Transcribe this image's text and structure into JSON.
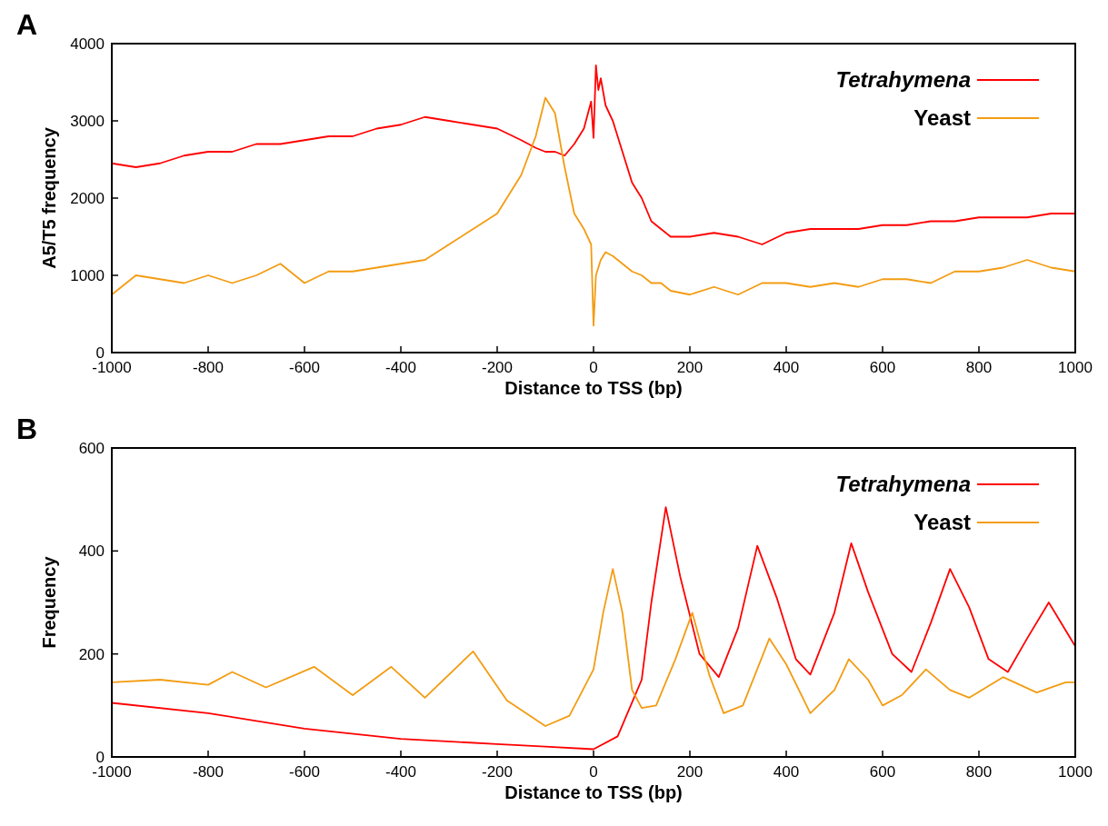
{
  "chart_data": [
    {
      "type": "line",
      "annotations": [
        "A"
      ],
      "xlabel": "Distance to TSS (bp)",
      "ylabel": "A5/T5  frequency",
      "xlim": [
        -1000,
        1000
      ],
      "xticks": [
        -1000,
        -800,
        -600,
        -400,
        -200,
        0,
        200,
        400,
        600,
        800,
        1000
      ],
      "ylim": [
        0,
        4000
      ],
      "yticks": [
        0,
        1000,
        2000,
        3000,
        4000
      ],
      "grid": false,
      "legend": "top right",
      "series": [
        {
          "name": "*Tetrahymena*",
          "color": "#ff0000",
          "x": [
            -1000,
            -950,
            -900,
            -850,
            -800,
            -750,
            -700,
            -650,
            -600,
            -550,
            -500,
            -450,
            -400,
            -350,
            -300,
            -250,
            -200,
            -150,
            -120,
            -100,
            -80,
            -60,
            -40,
            -20,
            -5,
            0,
            5,
            10,
            15,
            25,
            40,
            60,
            80,
            100,
            120,
            140,
            160,
            200,
            250,
            300,
            350,
            400,
            450,
            500,
            550,
            600,
            650,
            700,
            750,
            800,
            850,
            900,
            950,
            1000
          ],
          "values": [
            2450,
            2400,
            2450,
            2550,
            2600,
            2600,
            2700,
            2700,
            2750,
            2800,
            2800,
            2900,
            2950,
            3050,
            3000,
            2950,
            2900,
            2750,
            2650,
            2600,
            2600,
            2550,
            2700,
            2900,
            3250,
            2780,
            3720,
            3400,
            3550,
            3200,
            3000,
            2600,
            2200,
            2000,
            1700,
            1600,
            1500,
            1500,
            1550,
            1500,
            1400,
            1550,
            1600,
            1600,
            1600,
            1650,
            1650,
            1700,
            1700,
            1750,
            1750,
            1750,
            1800,
            1800
          ]
        },
        {
          "name": "Yeast",
          "color": "#f39c12",
          "x": [
            -1000,
            -950,
            -900,
            -850,
            -800,
            -750,
            -700,
            -650,
            -600,
            -550,
            -500,
            -450,
            -400,
            -350,
            -300,
            -250,
            -200,
            -150,
            -120,
            -100,
            -80,
            -60,
            -40,
            -20,
            -5,
            0,
            5,
            10,
            15,
            25,
            40,
            60,
            80,
            100,
            120,
            140,
            160,
            200,
            250,
            300,
            350,
            400,
            450,
            500,
            550,
            600,
            650,
            700,
            750,
            800,
            850,
            900,
            950,
            1000
          ],
          "values": [
            750,
            1000,
            950,
            900,
            1000,
            900,
            1000,
            1150,
            900,
            1050,
            1050,
            1100,
            1150,
            1200,
            1400,
            1600,
            1800,
            2300,
            2800,
            3300,
            3100,
            2400,
            1800,
            1600,
            1400,
            350,
            1000,
            1100,
            1200,
            1300,
            1250,
            1150,
            1050,
            1000,
            900,
            900,
            800,
            750,
            850,
            750,
            900,
            900,
            850,
            900,
            850,
            950,
            950,
            900,
            1050,
            1050,
            1100,
            1200,
            1100,
            1050
          ]
        }
      ]
    },
    {
      "type": "line",
      "annotations": [
        "B"
      ],
      "xlabel": "Distance to TSS (bp)",
      "ylabel": "Frequency",
      "xlim": [
        -1000,
        1000
      ],
      "xticks": [
        -1000,
        -800,
        -600,
        -400,
        -200,
        0,
        200,
        400,
        600,
        800,
        1000
      ],
      "ylim": [
        0,
        600
      ],
      "yticks": [
        0,
        200,
        400,
        600
      ],
      "grid": false,
      "legend": "top right",
      "series": [
        {
          "name": "*Tetrahymena*",
          "color": "#ff0000",
          "x": [
            -1000,
            -800,
            -600,
            -400,
            -200,
            -100,
            0,
            50,
            100,
            120,
            150,
            180,
            220,
            260,
            300,
            340,
            380,
            420,
            450,
            500,
            535,
            570,
            620,
            660,
            700,
            740,
            780,
            820,
            860,
            900,
            945,
            1000
          ],
          "values": [
            105,
            85,
            55,
            35,
            25,
            20,
            15,
            40,
            150,
            300,
            485,
            350,
            200,
            155,
            250,
            410,
            310,
            190,
            160,
            280,
            415,
            320,
            200,
            165,
            260,
            365,
            290,
            190,
            165,
            230,
            300,
            215
          ]
        },
        {
          "name": "Yeast",
          "color": "#f39c12",
          "x": [
            -1000,
            -900,
            -800,
            -750,
            -680,
            -580,
            -500,
            -420,
            -350,
            -250,
            -180,
            -100,
            -50,
            0,
            20,
            40,
            60,
            80,
            100,
            130,
            170,
            205,
            240,
            270,
            310,
            365,
            400,
            450,
            500,
            530,
            570,
            600,
            640,
            690,
            740,
            780,
            850,
            920,
            980,
            1000
          ],
          "values": [
            145,
            150,
            140,
            165,
            135,
            175,
            120,
            175,
            115,
            205,
            110,
            60,
            80,
            170,
            280,
            365,
            280,
            130,
            95,
            100,
            190,
            280,
            160,
            85,
            100,
            230,
            180,
            85,
            130,
            190,
            150,
            100,
            120,
            170,
            130,
            115,
            155,
            125,
            145,
            145
          ]
        }
      ]
    }
  ]
}
